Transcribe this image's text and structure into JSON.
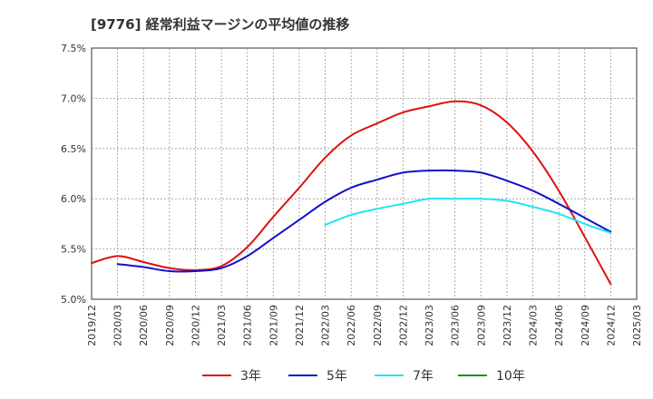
{
  "chart_data": {
    "type": "line",
    "title": "[9776]  経常利益マージンの平均値の推移",
    "xlabel": "",
    "ylabel": "",
    "ylim": [
      0.05,
      0.075
    ],
    "y_ticks": [
      "5.0%",
      "5.5%",
      "6.0%",
      "6.5%",
      "7.0%",
      "7.5%"
    ],
    "x_ticks": [
      "2019/12",
      "2020/03",
      "2020/06",
      "2020/09",
      "2020/12",
      "2021/03",
      "2021/06",
      "2021/09",
      "2021/12",
      "2022/03",
      "2022/06",
      "2022/09",
      "2022/12",
      "2023/03",
      "2023/06",
      "2023/09",
      "2023/12",
      "2024/03",
      "2024/06",
      "2024/09",
      "2024/12",
      "2025/03"
    ],
    "grid": true,
    "legend_position": "bottom",
    "series": [
      {
        "name": "3年",
        "color": "#dd1111",
        "x": [
          "2019/12",
          "2020/03",
          "2020/06",
          "2020/09",
          "2020/12",
          "2021/03",
          "2021/06",
          "2021/09",
          "2021/12",
          "2022/03",
          "2022/06",
          "2022/09",
          "2022/12",
          "2023/03",
          "2023/06",
          "2023/09",
          "2023/12",
          "2024/03",
          "2024/06",
          "2024/09",
          "2024/12"
        ],
        "values": [
          0.0536,
          0.0543,
          0.0537,
          0.0531,
          0.0529,
          0.0533,
          0.0552,
          0.0582,
          0.0611,
          0.0641,
          0.0663,
          0.0675,
          0.0686,
          0.0692,
          0.0697,
          0.0693,
          0.0676,
          0.0647,
          0.0608,
          0.0562,
          0.0515
        ]
      },
      {
        "name": "5年",
        "color": "#1111cc",
        "x": [
          "2020/03",
          "2020/06",
          "2020/09",
          "2020/12",
          "2021/03",
          "2021/06",
          "2021/09",
          "2021/12",
          "2022/03",
          "2022/06",
          "2022/09",
          "2022/12",
          "2023/03",
          "2023/06",
          "2023/09",
          "2023/12",
          "2024/03",
          "2024/06",
          "2024/09",
          "2024/12"
        ],
        "values": [
          0.0535,
          0.0532,
          0.0528,
          0.0528,
          0.0531,
          0.0543,
          0.0561,
          0.0579,
          0.0597,
          0.0611,
          0.0619,
          0.0626,
          0.0628,
          0.0628,
          0.0626,
          0.0618,
          0.0608,
          0.0595,
          0.0581,
          0.0567
        ]
      },
      {
        "name": "7年",
        "color": "#22e5ee",
        "x": [
          "2022/03",
          "2022/06",
          "2022/09",
          "2022/12",
          "2023/03",
          "2023/06",
          "2023/09",
          "2023/12",
          "2024/03",
          "2024/06",
          "2024/09",
          "2024/12"
        ],
        "values": [
          0.0574,
          0.0584,
          0.059,
          0.0595,
          0.06,
          0.06,
          0.06,
          0.0598,
          0.0592,
          0.0585,
          0.0575,
          0.0566
        ]
      },
      {
        "name": "10年",
        "color": "#228B22",
        "x": [],
        "values": []
      }
    ]
  }
}
